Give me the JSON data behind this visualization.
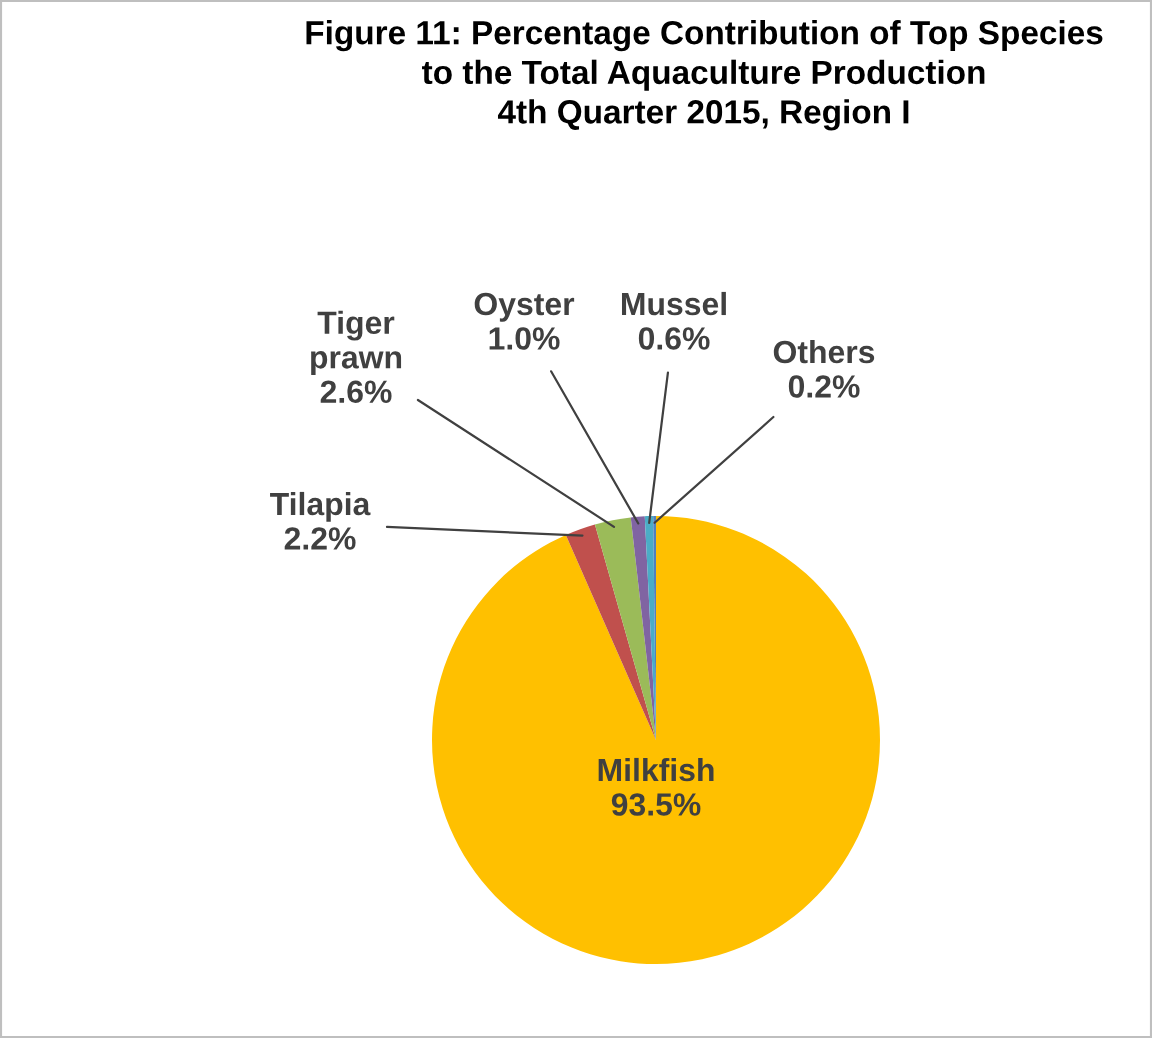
{
  "chart_data": {
    "type": "pie",
    "title": "Figure 11: Percentage Contribution of Top Species\nto the Total Aquaculture Production\n4th Quarter 2015, Region I",
    "categories": [
      "Milkfish",
      "Tilapia",
      "Tiger prawn",
      "Oyster",
      "Mussel",
      "Others"
    ],
    "values": [
      93.5,
      2.2,
      2.6,
      1.0,
      0.6,
      0.2
    ],
    "value_labels": [
      "93.5%",
      "2.2%",
      "2.6%",
      "1.0%",
      "0.6%",
      "0.2%"
    ],
    "colors": [
      "#ffc000",
      "#c0504d",
      "#9bbb59",
      "#8064a2",
      "#4bacc6",
      "#4f81bd"
    ],
    "legend": false
  }
}
